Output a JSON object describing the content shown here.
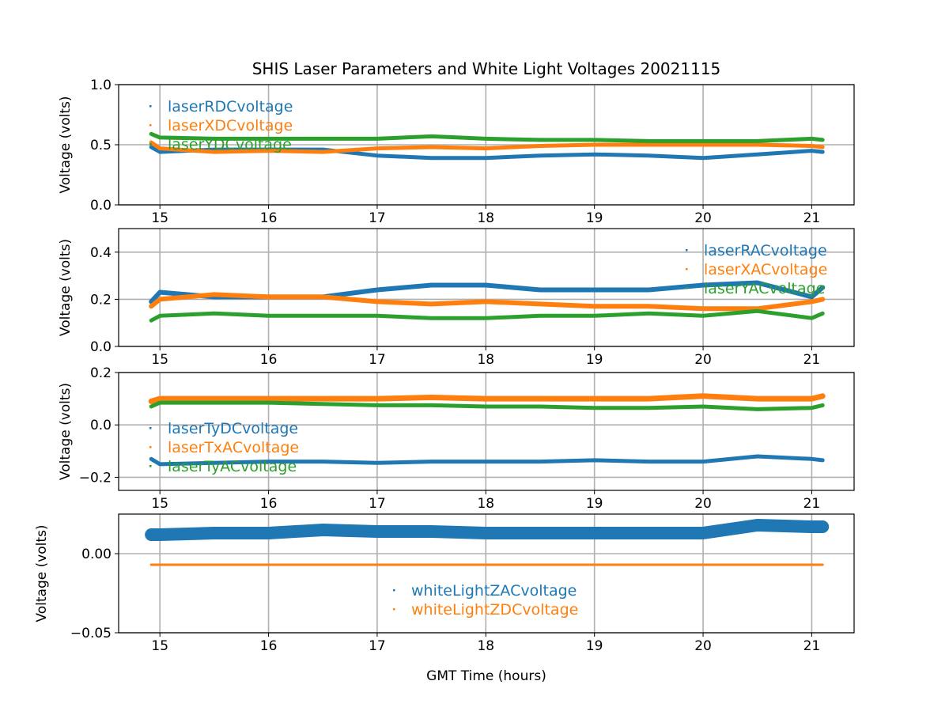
{
  "chart_data": {
    "type": "scatter",
    "title": "SHIS Laser Parameters and White Light Voltages 20021115",
    "xlabel": "GMT Time (hours)",
    "xlim": [
      14.62,
      21.39
    ],
    "xticks": [
      15,
      16,
      17,
      18,
      19,
      20,
      21
    ],
    "xtick_labels": [
      "15",
      "16",
      "17",
      "18",
      "19",
      "20",
      "21"
    ],
    "grid": true,
    "colors": [
      "#1f77b4",
      "#ff7f0e",
      "#2ca02c"
    ],
    "x": [
      14.92,
      15.0,
      15.5,
      16.0,
      16.5,
      17.0,
      17.5,
      18.0,
      18.5,
      19.0,
      19.5,
      20.0,
      20.5,
      21.0,
      21.1
    ],
    "subplots": [
      {
        "ylabel": "Voltage (volts)",
        "ylim": [
          0.0,
          1.0
        ],
        "yticks": [
          0.0,
          0.5,
          1.0
        ],
        "ytick_labels": [
          "0.0",
          "0.5",
          "1.0"
        ],
        "legend": "upper-left",
        "series": [
          {
            "name": "laserRDCvoltage",
            "values": [
              0.48,
              0.44,
              0.46,
              0.46,
              0.46,
              0.41,
              0.39,
              0.39,
              0.41,
              0.42,
              0.41,
              0.39,
              0.42,
              0.45,
              0.44
            ]
          },
          {
            "name": "laserXDCvoltage",
            "values": [
              0.52,
              0.47,
              0.44,
              0.45,
              0.44,
              0.47,
              0.48,
              0.47,
              0.49,
              0.5,
              0.5,
              0.5,
              0.5,
              0.49,
              0.48
            ]
          },
          {
            "name": "laserYDCvoltage",
            "values": [
              0.59,
              0.56,
              0.55,
              0.55,
              0.55,
              0.55,
              0.57,
              0.55,
              0.54,
              0.54,
              0.53,
              0.53,
              0.53,
              0.55,
              0.54
            ]
          }
        ]
      },
      {
        "ylabel": "Voltage (volts)",
        "ylim": [
          0.0,
          0.5
        ],
        "yticks": [
          0.0,
          0.2,
          0.4
        ],
        "ytick_labels": [
          "0.0",
          "0.2",
          "0.4"
        ],
        "legend": "upper-right",
        "series": [
          {
            "name": "laserRACvoltage",
            "values": [
              0.19,
              0.23,
              0.21,
              0.21,
              0.21,
              0.24,
              0.26,
              0.26,
              0.24,
              0.24,
              0.24,
              0.26,
              0.27,
              0.21,
              0.25
            ]
          },
          {
            "name": "laserXACvoltage",
            "values": [
              0.17,
              0.2,
              0.22,
              0.21,
              0.21,
              0.19,
              0.18,
              0.19,
              0.18,
              0.17,
              0.17,
              0.16,
              0.16,
              0.19,
              0.2
            ]
          },
          {
            "name": "laserYACvoltage",
            "values": [
              0.11,
              0.13,
              0.14,
              0.13,
              0.13,
              0.13,
              0.12,
              0.12,
              0.13,
              0.13,
              0.14,
              0.13,
              0.15,
              0.12,
              0.14
            ]
          }
        ]
      },
      {
        "ylabel": "Voltage (volts)",
        "ylim": [
          -0.25,
          0.2
        ],
        "yticks": [
          -0.2,
          0.0,
          0.2
        ],
        "ytick_labels": [
          "−0.2",
          "0.0",
          "0.2"
        ],
        "legend": "center-left",
        "series": [
          {
            "name": "laserTyDCvoltage",
            "values": [
              -0.13,
              -0.15,
              -0.145,
              -0.14,
              -0.14,
              -0.145,
              -0.14,
              -0.14,
              -0.14,
              -0.135,
              -0.14,
              -0.14,
              -0.12,
              -0.13,
              -0.135
            ]
          },
          {
            "name": "laserTxACvoltage",
            "values": [
              0.09,
              0.1,
              0.1,
              0.1,
              0.1,
              0.1,
              0.105,
              0.1,
              0.1,
              0.1,
              0.1,
              0.11,
              0.1,
              0.1,
              0.11
            ]
          },
          {
            "name": "laserTyACvoltage",
            "values": [
              0.07,
              0.085,
              0.085,
              0.085,
              0.08,
              0.075,
              0.075,
              0.07,
              0.07,
              0.065,
              0.065,
              0.07,
              0.06,
              0.065,
              0.075
            ]
          }
        ]
      },
      {
        "ylabel": "Voltage (volts)",
        "ylim": [
          -0.05,
          0.025
        ],
        "yticks": [
          -0.05,
          0.0
        ],
        "ytick_labels": [
          "−0.05",
          "0.00"
        ],
        "legend": "lower-center",
        "series": [
          {
            "name": "whiteLightZACvoltage",
            "values": [
              0.012,
              0.012,
              0.013,
              0.013,
              0.015,
              0.014,
              0.014,
              0.013,
              0.013,
              0.013,
              0.013,
              0.013,
              0.018,
              0.017,
              0.017
            ]
          },
          {
            "name": "whiteLightZDCvoltage",
            "values": [
              -0.007,
              -0.007,
              -0.007,
              -0.007,
              -0.007,
              -0.007,
              -0.007,
              -0.007,
              -0.007,
              -0.007,
              -0.007,
              -0.007,
              -0.007,
              -0.007,
              -0.007
            ]
          }
        ]
      }
    ]
  }
}
